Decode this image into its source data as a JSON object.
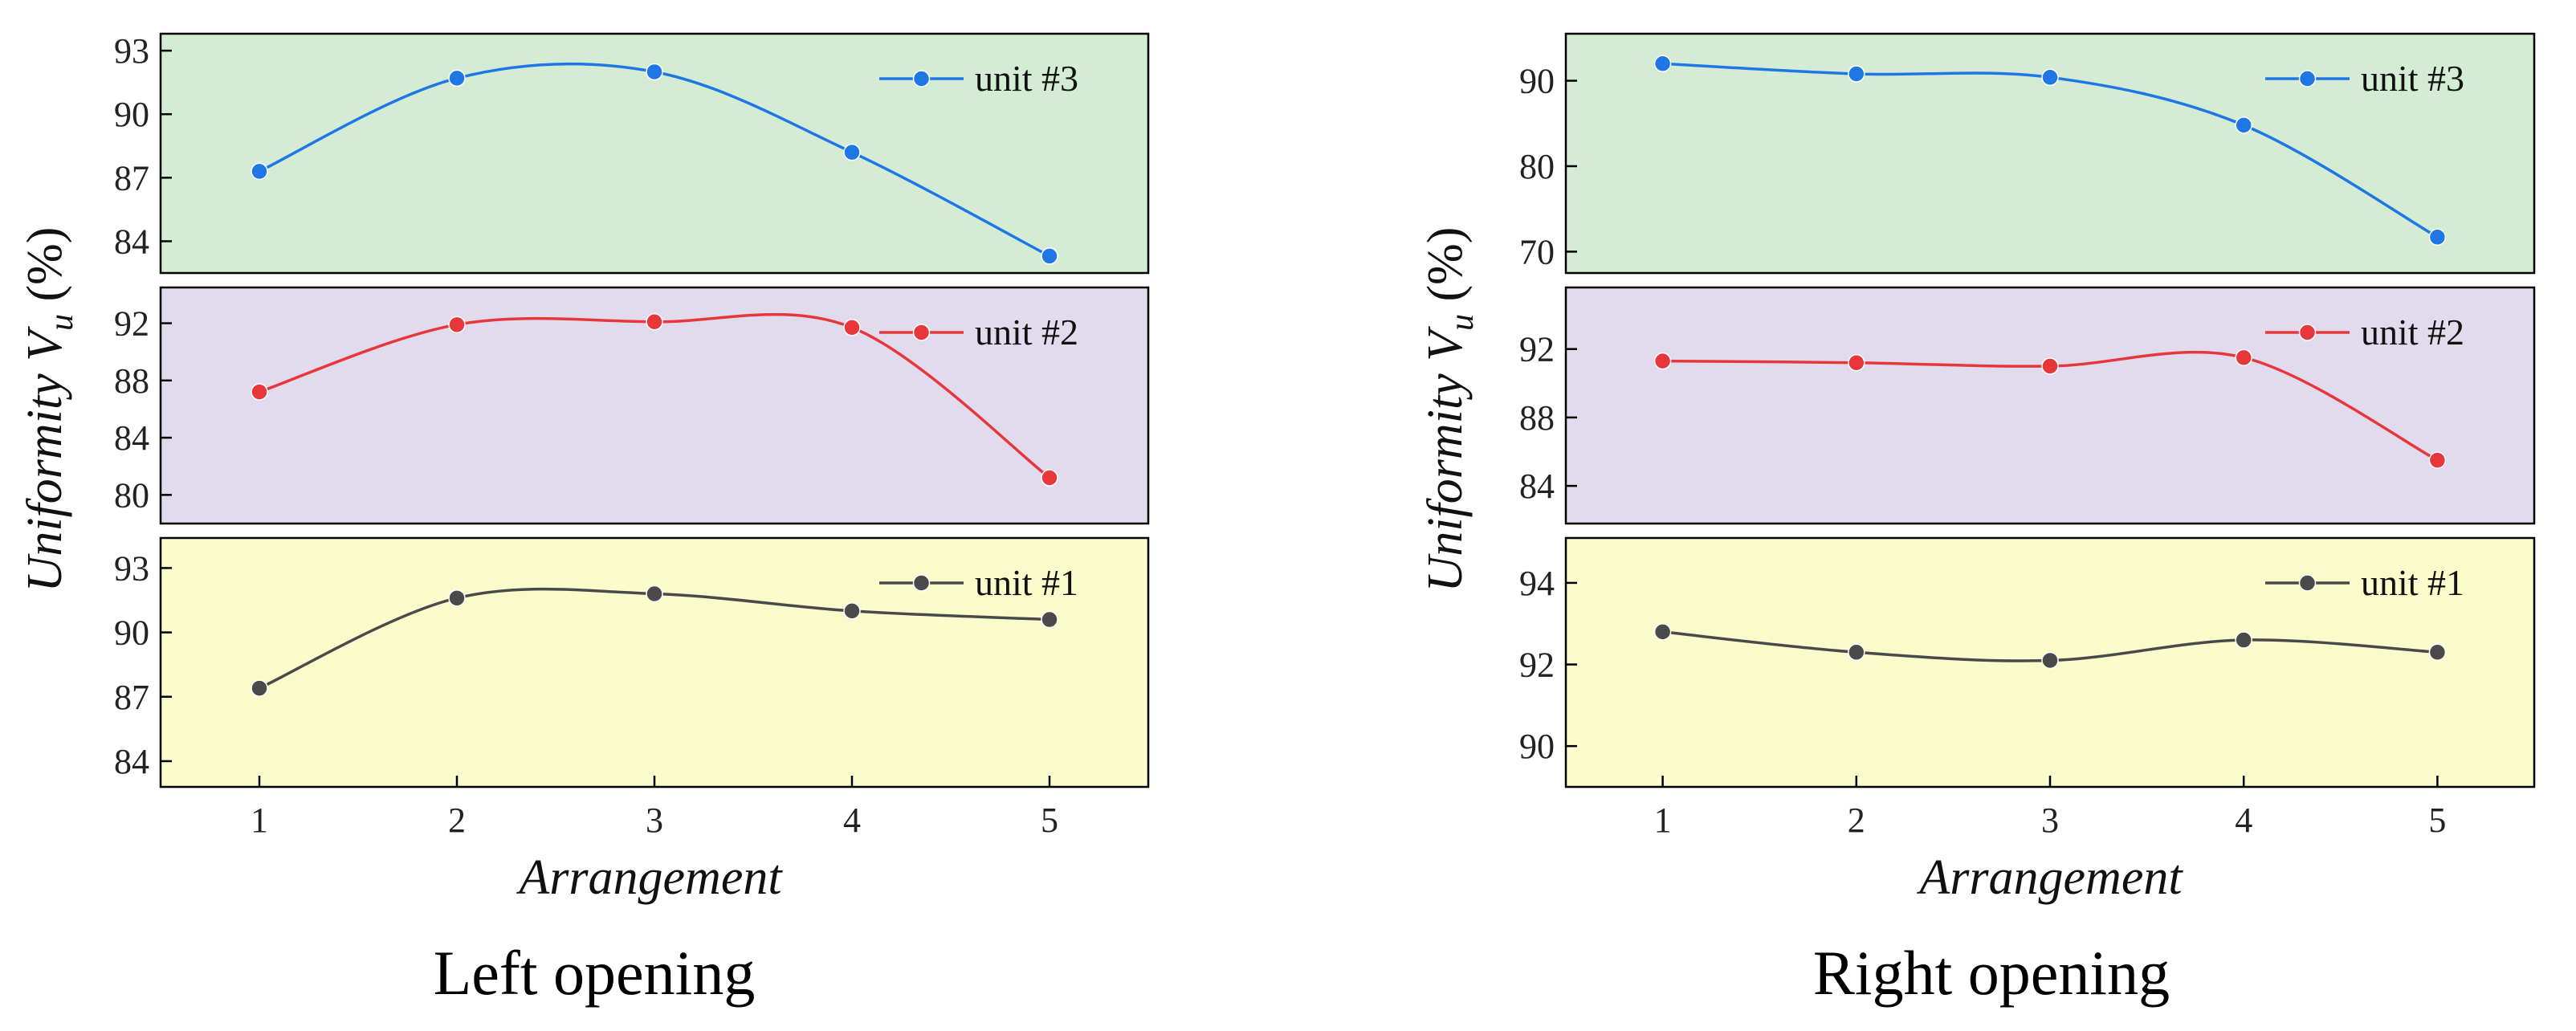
{
  "chart_data": [
    {
      "type": "line",
      "title": "Left opening",
      "xlabel": "Arrangement",
      "ylabel": "Uniformity V_u (%)",
      "ylabel_main": "Uniformity",
      "ylabel_symbol": "V",
      "ylabel_subscript": "u",
      "ylabel_unit": "(%)",
      "x": [
        1,
        2,
        3,
        4,
        5
      ],
      "xlim": [
        0.5,
        5.5
      ],
      "panels": [
        {
          "series": {
            "name": "unit #3",
            "values": [
              87.3,
              91.7,
              92.0,
              88.2,
              83.3
            ],
            "color": "#1f77e6"
          },
          "bg": "#d4ecd4",
          "ylim": [
            82.5,
            93.8
          ],
          "yticks": [
            84,
            87,
            90,
            93
          ]
        },
        {
          "series": {
            "name": "unit #2",
            "values": [
              87.2,
              91.9,
              92.1,
              91.7,
              81.2
            ],
            "color": "#e8373a"
          },
          "bg": "#e2dbee",
          "ylim": [
            78,
            94.5
          ],
          "yticks": [
            80,
            84,
            88,
            92
          ]
        },
        {
          "series": {
            "name": "unit #1",
            "values": [
              87.4,
              91.6,
              91.8,
              91.0,
              90.6
            ],
            "color": "#4a4a4a"
          },
          "bg": "#fafccc",
          "ylim": [
            82.8,
            94.4
          ],
          "yticks": [
            84,
            87,
            90,
            93
          ]
        }
      ]
    },
    {
      "type": "line",
      "title": "Right opening",
      "xlabel": "Arrangement",
      "ylabel": "Uniformity V_u (%)",
      "ylabel_main": "Uniformity",
      "ylabel_symbol": "V",
      "ylabel_subscript": "u",
      "ylabel_unit": "(%)",
      "x": [
        1,
        2,
        3,
        4,
        5
      ],
      "xlim": [
        0.5,
        5.5
      ],
      "panels": [
        {
          "series": {
            "name": "unit #3",
            "values": [
              92.0,
              90.8,
              90.4,
              84.8,
              71.7
            ],
            "color": "#1f77e6"
          },
          "bg": "#d4ecd4",
          "ylim": [
            67.5,
            95.5
          ],
          "yticks": [
            70,
            80,
            90
          ]
        },
        {
          "series": {
            "name": "unit #2",
            "values": [
              91.3,
              91.2,
              91.0,
              91.5,
              85.5
            ],
            "color": "#e8373a"
          },
          "bg": "#e2dbee",
          "ylim": [
            81.8,
            95.6
          ],
          "yticks": [
            84,
            88,
            92
          ]
        },
        {
          "series": {
            "name": "unit #1",
            "values": [
              92.8,
              92.3,
              92.1,
              92.6,
              92.3
            ],
            "color": "#4a4a4a"
          },
          "bg": "#fafccc",
          "ylim": [
            89.0,
            95.1
          ],
          "yticks": [
            90,
            92,
            94
          ]
        }
      ]
    }
  ]
}
